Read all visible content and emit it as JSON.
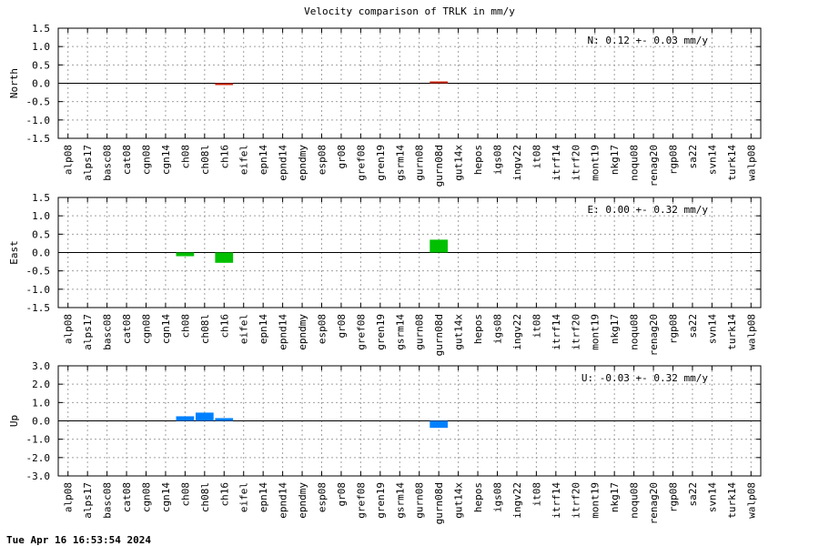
{
  "title": "Velocity comparison of TRLK in mm/y",
  "timestamp": "Tue Apr 16 16:53:54 2024",
  "chart_data": [
    {
      "type": "bar",
      "ylabel": "North",
      "annotation": "N:   0.12 +-  0.03 mm/y",
      "color": "#cc2200",
      "ylim": [
        -1.5,
        1.5
      ],
      "yticks": [
        "1.5",
        "1.0",
        "0.5",
        "0.0",
        "-0.5",
        "-1.0",
        "-1.5"
      ],
      "grid": true,
      "categories": [
        "alp08",
        "alps17",
        "basc08",
        "cat08",
        "cgn08",
        "cgn14",
        "ch08",
        "ch08l",
        "ch16",
        "eifel",
        "epn14",
        "epnd14",
        "epndmy",
        "esp08",
        "gr08",
        "gref08",
        "gren19",
        "gsrm14",
        "gurn08",
        "gurn08d",
        "gut14x",
        "hepos",
        "igs08",
        "ingv22",
        "it08",
        "itrf14",
        "itrf20",
        "mont19",
        "nkg17",
        "noqu08",
        "renag20",
        "rgp08",
        "sa22",
        "svn14",
        "turk14",
        "walp08"
      ],
      "values": [
        0,
        0,
        0,
        0,
        0,
        0,
        0,
        0,
        -0.03,
        0,
        0,
        0,
        0,
        0,
        0,
        0,
        0,
        0,
        0,
        0.02,
        0,
        0,
        0,
        0,
        0,
        0,
        0,
        0,
        0,
        0,
        0,
        0,
        0,
        0,
        0,
        0
      ]
    },
    {
      "type": "bar",
      "ylabel": "East",
      "annotation": "E:   0.00 +-  0.32 mm/y",
      "color": "#00c000",
      "ylim": [
        -1.5,
        1.5
      ],
      "yticks": [
        "1.5",
        "1.0",
        "0.5",
        "0.0",
        "-0.5",
        "-1.0",
        "-1.5"
      ],
      "grid": true,
      "categories": [
        "alp08",
        "alps17",
        "basc08",
        "cat08",
        "cgn08",
        "cgn14",
        "ch08",
        "ch08l",
        "ch16",
        "eifel",
        "epn14",
        "epnd14",
        "epndmy",
        "esp08",
        "gr08",
        "gref08",
        "gren19",
        "gsrm14",
        "gurn08",
        "gurn08d",
        "gut14x",
        "hepos",
        "igs08",
        "ingv22",
        "it08",
        "itrf14",
        "itrf20",
        "mont19",
        "nkg17",
        "noqu08",
        "renag20",
        "rgp08",
        "sa22",
        "svn14",
        "turk14",
        "walp08"
      ],
      "values": [
        0,
        0,
        0,
        0,
        0,
        0,
        -0.1,
        0,
        -0.28,
        0,
        0,
        0,
        0,
        0,
        0,
        0,
        0,
        0,
        0,
        0.35,
        0,
        0,
        0,
        0,
        0,
        0,
        0,
        0,
        0,
        0,
        0,
        0,
        0,
        0,
        0,
        0
      ]
    },
    {
      "type": "bar",
      "ylabel": "Up",
      "annotation": "U:  -0.03 +-  0.32 mm/y",
      "color": "#0080ff",
      "ylim": [
        -3.0,
        3.0
      ],
      "yticks": [
        "3.0",
        "2.0",
        "1.0",
        "0.0",
        "-1.0",
        "-2.0",
        "-3.0"
      ],
      "grid": true,
      "categories": [
        "alp08",
        "alps17",
        "basc08",
        "cat08",
        "cgn08",
        "cgn14",
        "ch08",
        "ch08l",
        "ch16",
        "eifel",
        "epn14",
        "epnd14",
        "epndmy",
        "esp08",
        "gr08",
        "gref08",
        "gren19",
        "gsrm14",
        "gurn08",
        "gurn08d",
        "gut14x",
        "hepos",
        "igs08",
        "ingv22",
        "it08",
        "itrf14",
        "itrf20",
        "mont19",
        "nkg17",
        "noqu08",
        "renag20",
        "rgp08",
        "sa22",
        "svn14",
        "turk14",
        "walp08"
      ],
      "values": [
        0,
        0,
        0,
        0,
        0,
        0,
        0.25,
        0.45,
        0.15,
        0,
        0,
        0,
        0,
        0,
        0,
        0,
        0,
        0,
        0,
        -0.38,
        0,
        0,
        0,
        0,
        0,
        0,
        0,
        0,
        0,
        0,
        0,
        0,
        0,
        0,
        0,
        0
      ]
    }
  ]
}
